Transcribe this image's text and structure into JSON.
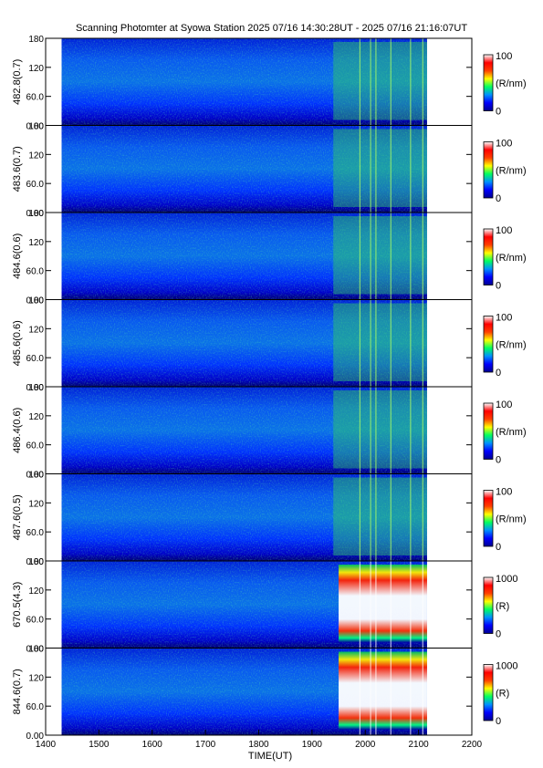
{
  "title": "Scanning Photomter at Syowa Station  2025 07/16 14:30:28UT - 2025 07/16 21:16:07UT",
  "chart_data": {
    "type": "heatmap",
    "title": "Scanning Photomter at Syowa Station  2025 07/16 14:30:28UT - 2025 07/16 21:16:07UT",
    "xlabel": "TIME(UT)",
    "xlim": [
      1400,
      2200
    ],
    "x_ticks": [
      "1400",
      "1500",
      "1600",
      "1700",
      "1800",
      "1900",
      "2000",
      "2100",
      "2200"
    ],
    "data_range": [
      1430,
      2116
    ],
    "ylim": [
      0,
      180
    ],
    "y_ticks": [
      "0.00",
      "60.0",
      "120",
      "180"
    ],
    "panels": [
      {
        "ylabel": "482.8(0.7)",
        "unit": "(R/nm)",
        "cmax": "100",
        "cmin": "0"
      },
      {
        "ylabel": "483.6(0.7)",
        "unit": "(R/nm)",
        "cmax": "100",
        "cmin": "0"
      },
      {
        "ylabel": "484.6(0.6)",
        "unit": "(R/nm)",
        "cmax": "100",
        "cmin": "0"
      },
      {
        "ylabel": "485.6(0.6)",
        "unit": "(R/nm)",
        "cmax": "100",
        "cmin": "0"
      },
      {
        "ylabel": "486.4(0.6)",
        "unit": "(R/nm)",
        "cmax": "100",
        "cmin": "0"
      },
      {
        "ylabel": "487.6(0.5)",
        "unit": "(R/nm)",
        "cmax": "100",
        "cmin": "0"
      },
      {
        "ylabel": "670.5(4.3)",
        "unit": "(R)",
        "cmax": "1000",
        "cmin": "0"
      },
      {
        "ylabel": "844.6(0.7)",
        "unit": "(R)",
        "cmax": "1000",
        "cmin": "0"
      }
    ],
    "colorscale": [
      "#000090",
      "#0000ff",
      "#0090ff",
      "#00ff60",
      "#ffff00",
      "#ff4000",
      "#ff0000",
      "#ffffff"
    ]
  }
}
